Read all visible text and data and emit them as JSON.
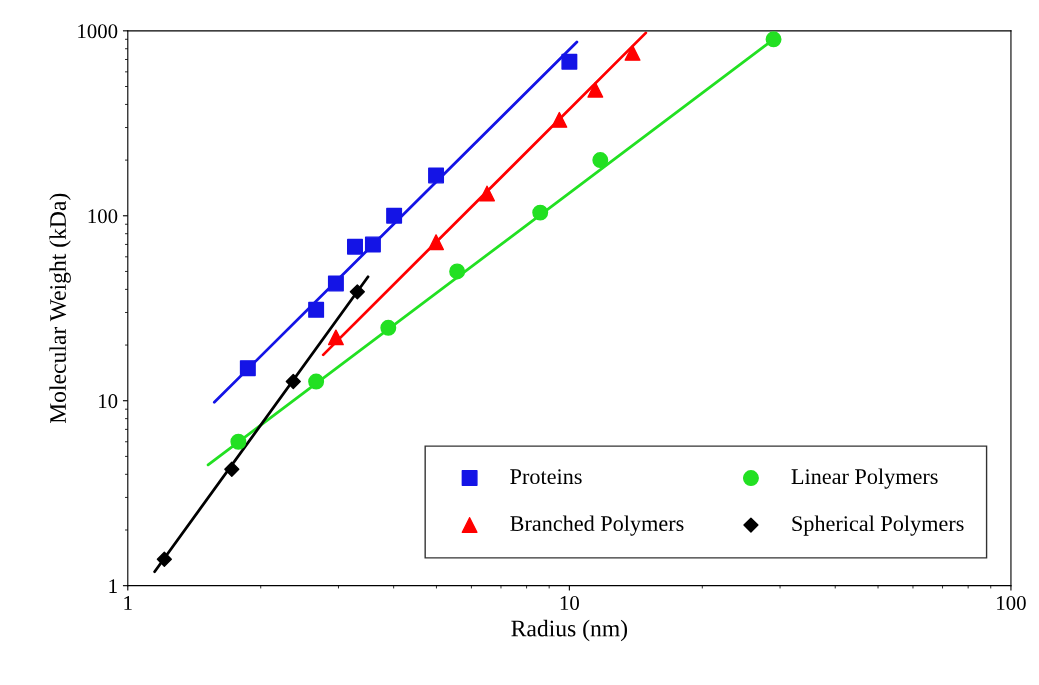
{
  "chart_data": {
    "type": "scatter",
    "xlabel": "Radius (nm)",
    "ylabel": "Molecular Weight (kDa)",
    "log": "xy",
    "xlim": [
      1,
      100
    ],
    "ylim": [
      1,
      1000
    ],
    "xticks": [
      1,
      10,
      100
    ],
    "yticks": [
      1,
      10,
      100,
      1000
    ],
    "grid": false,
    "legend": "bottom right",
    "series": [
      {
        "name": "Proteins",
        "color": "#1414e6",
        "marker": "square",
        "x": [
          1.87,
          2.67,
          2.96,
          3.27,
          3.59,
          4.01,
          4.99,
          10.0
        ],
        "values": [
          15,
          31,
          43,
          68,
          70,
          100,
          165,
          680
        ]
      },
      {
        "name": "Branched Polymers",
        "color": "#ff0000",
        "marker": "triangle",
        "x": [
          2.96,
          4.99,
          6.51,
          9.49,
          11.45,
          13.9
        ],
        "values": [
          22,
          72,
          132,
          330,
          480,
          760
        ]
      },
      {
        "name": "Linear Polymers",
        "color": "#22e022",
        "marker": "circle",
        "x": [
          1.78,
          2.67,
          3.89,
          5.57,
          8.59,
          11.75,
          29
        ],
        "values": [
          6.0,
          12.7,
          24.8,
          50,
          104,
          200,
          900
        ]
      },
      {
        "name": "Spherical Polymers",
        "color": "#000000",
        "marker": "diamond",
        "x": [
          1.21,
          1.72,
          2.37,
          3.31
        ],
        "values": [
          1.39,
          4.26,
          12.7,
          38.8
        ]
      },
      {
        "type": "line",
        "color": "#1414e6",
        "marker": "none",
        "x": [
          1.57,
          10.4
        ],
        "values": [
          9.8,
          870
        ]
      },
      {
        "type": "line",
        "color": "#ff0000",
        "marker": "none",
        "x": [
          2.77,
          14.9
        ],
        "values": [
          17.7,
          975
        ]
      },
      {
        "type": "line",
        "color": "#22e022",
        "marker": "none",
        "x": [
          1.52,
          29
        ],
        "values": [
          4.5,
          900
        ]
      },
      {
        "type": "line",
        "color": "#000000",
        "marker": "none",
        "x": [
          1.15,
          3.5
        ],
        "values": [
          1.19,
          46.8
        ]
      }
    ]
  }
}
